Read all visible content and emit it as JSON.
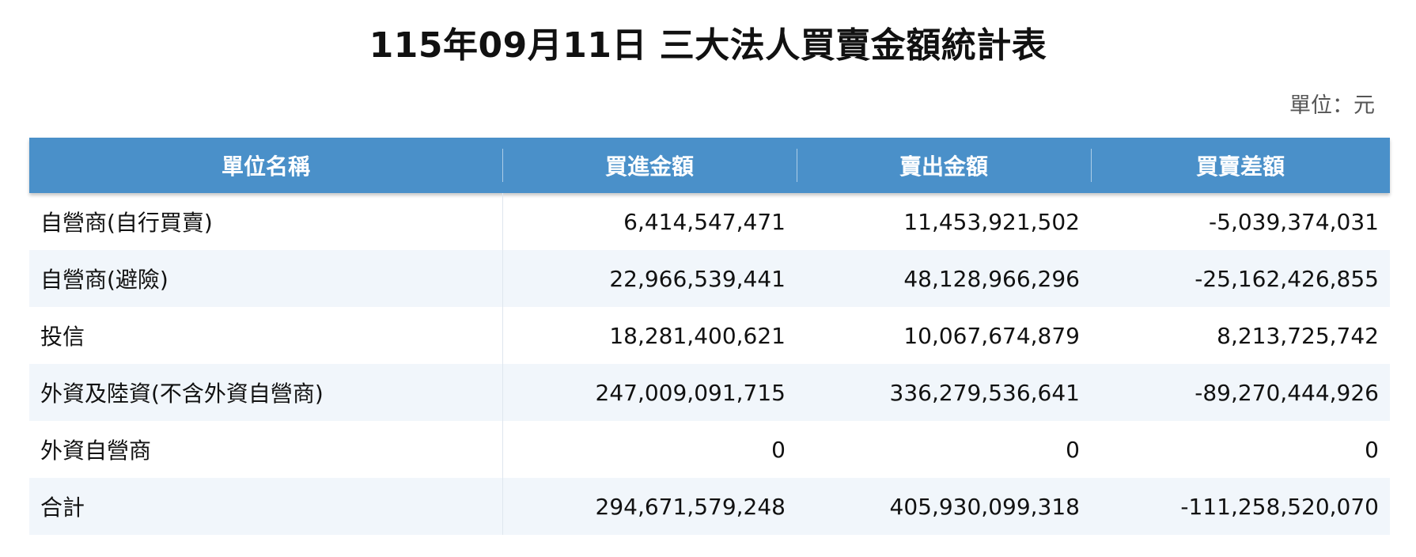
{
  "title": "115年09月11日 三大法人買賣金額統計表",
  "unit": "單位：元",
  "table": {
    "headers": [
      "單位名稱",
      "買進金額",
      "賣出金額",
      "買賣差額"
    ],
    "rows": [
      [
        "自營商(自行買賣)",
        "6,414,547,471",
        "11,453,921,502",
        "-5,039,374,031"
      ],
      [
        "自營商(避險)",
        "22,966,539,441",
        "48,128,966,296",
        "-25,162,426,855"
      ],
      [
        "投信",
        "18,281,400,621",
        "10,067,674,879",
        "8,213,725,742"
      ],
      [
        "外資及陸資(不含外資自營商)",
        "247,009,091,715",
        "336,279,536,641",
        "-89,270,444,926"
      ],
      [
        "外資自營商",
        "0",
        "0",
        "0"
      ],
      [
        "合計",
        "294,671,579,248",
        "405,930,099,318",
        "-111,258,520,070"
      ]
    ]
  },
  "colors": {
    "header_bg": "#4a90c9",
    "header_text": "#ffffff",
    "stripe_bg": "#f1f6fb"
  }
}
